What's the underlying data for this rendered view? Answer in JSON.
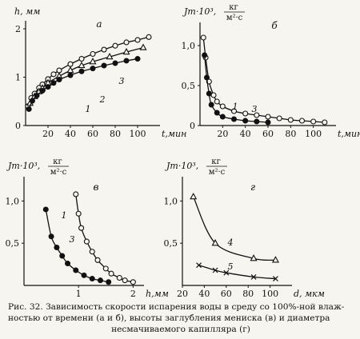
{
  "chart_data": [
    {
      "type": "line",
      "panel": "а",
      "xlabel": "t,мин",
      "ylabel": "h, мм",
      "xlim": [
        0,
        120
      ],
      "ylim": [
        0,
        2.1
      ],
      "xticks": [
        "20",
        "40",
        "60",
        "80",
        "100"
      ],
      "yticks": [
        "0",
        "1",
        "2"
      ],
      "series": [
        {
          "name": "1",
          "marker": "open-circle",
          "x": [
            2,
            5,
            8,
            12,
            15,
            20,
            25,
            30,
            40,
            50,
            60,
            70,
            80,
            90,
            100,
            110
          ],
          "y": [
            0.4,
            0.57,
            0.66,
            0.78,
            0.85,
            0.96,
            1.06,
            1.14,
            1.27,
            1.38,
            1.48,
            1.57,
            1.65,
            1.72,
            1.77,
            1.83
          ]
        },
        {
          "name": "2",
          "marker": "triangle",
          "x": [
            4,
            8,
            12,
            15,
            20,
            30,
            40,
            50,
            60,
            75,
            90,
            105
          ],
          "y": [
            0.46,
            0.6,
            0.7,
            0.77,
            0.88,
            1.02,
            1.14,
            1.24,
            1.32,
            1.42,
            1.52,
            1.61
          ]
        },
        {
          "name": "3",
          "marker": "filled-circle",
          "x": [
            3,
            6,
            10,
            15,
            20,
            25,
            30,
            40,
            50,
            60,
            70,
            80,
            90,
            100
          ],
          "y": [
            0.34,
            0.51,
            0.62,
            0.72,
            0.8,
            0.88,
            0.95,
            1.04,
            1.12,
            1.18,
            1.24,
            1.29,
            1.34,
            1.38
          ]
        }
      ]
    },
    {
      "type": "line",
      "panel": "б",
      "xlabel": "t,мин",
      "ylabel_main": "Jm·10³,",
      "ylabel_num": "кг",
      "ylabel_den": "м²·с",
      "xlim": [
        0,
        120
      ],
      "ylim": [
        0,
        1.25
      ],
      "xticks": [
        "20",
        "40",
        "60",
        "80",
        "100"
      ],
      "yticks": [
        "0",
        "0,5",
        "1,0"
      ],
      "series": [
        {
          "name": "1",
          "marker": "open-circle",
          "x": [
            3,
            5,
            8,
            12,
            15,
            20,
            30,
            40,
            50,
            60,
            70,
            80,
            90,
            100,
            110
          ],
          "y": [
            1.1,
            0.85,
            0.55,
            0.38,
            0.3,
            0.24,
            0.18,
            0.15,
            0.13,
            0.11,
            0.09,
            0.07,
            0.06,
            0.05,
            0.04
          ]
        },
        {
          "name": "3",
          "marker": "filled-circle",
          "x": [
            4,
            6,
            8,
            10,
            15,
            20,
            30,
            40,
            50,
            60
          ],
          "y": [
            0.88,
            0.6,
            0.4,
            0.26,
            0.16,
            0.11,
            0.08,
            0.06,
            0.05,
            0.04
          ]
        }
      ]
    },
    {
      "type": "line",
      "panel": "в",
      "xlabel": "h,мм",
      "ylabel_main": "Jm·10³,",
      "ylabel_num": "кг",
      "ylabel_den": "м²·с",
      "xlim": [
        0,
        2.2
      ],
      "ylim": [
        0,
        1.25
      ],
      "xticks": [
        "1",
        "2"
      ],
      "yticks": [
        "0,5",
        "1,0"
      ],
      "series": [
        {
          "name": "1",
          "marker": "open-circle",
          "x": [
            0.95,
            1.0,
            1.05,
            1.15,
            1.25,
            1.35,
            1.5,
            1.6,
            1.75,
            1.85,
            2.0
          ],
          "y": [
            1.08,
            0.85,
            0.68,
            0.52,
            0.4,
            0.3,
            0.2,
            0.14,
            0.09,
            0.06,
            0.04
          ]
        },
        {
          "name": "3",
          "marker": "filled-circle",
          "x": [
            0.4,
            0.5,
            0.6,
            0.7,
            0.8,
            0.95,
            1.1,
            1.25,
            1.4,
            1.55
          ],
          "y": [
            0.9,
            0.58,
            0.45,
            0.35,
            0.26,
            0.18,
            0.12,
            0.08,
            0.06,
            0.04
          ]
        }
      ]
    },
    {
      "type": "line",
      "panel": "г",
      "xlabel": "d, мкм",
      "ylabel_main": "Jm·10³,",
      "ylabel_num": "кг",
      "ylabel_den": "м²·с",
      "xlim": [
        20,
        120
      ],
      "ylim": [
        0,
        1.25
      ],
      "xticks": [
        "20",
        "40",
        "60",
        "80",
        "100"
      ],
      "yticks": [
        "0,5",
        "1,0"
      ],
      "series": [
        {
          "name": "4",
          "marker": "triangle",
          "x": [
            30,
            50,
            85,
            105
          ],
          "y": [
            1.05,
            0.5,
            0.32,
            0.3
          ]
        },
        {
          "name": "5",
          "marker": "cross",
          "x": [
            35,
            50,
            60,
            85,
            105
          ],
          "y": [
            0.24,
            0.18,
            0.15,
            0.1,
            0.08
          ]
        }
      ]
    }
  ],
  "caption": {
    "line1": "Рис. 32. Зависимость скорости испарения воды в среду со 100%-ной влаж-",
    "line2": "ностью от времени (а и б), высоты заглубления мениска (в) и диаметра",
    "line3": "несмачиваемого капилляра (г)"
  }
}
